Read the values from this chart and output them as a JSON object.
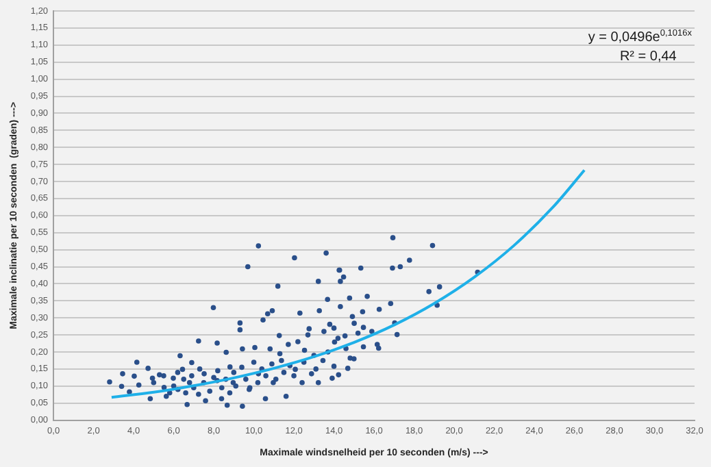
{
  "chart_data": {
    "type": "scatter",
    "xlabel": "Maximale windsnelheid per 10 seconden (m/s) --->",
    "ylabel": "Maximale inclinatie per 10 seconden  (graden) --->",
    "annotations": [
      "y = 0,0496e$^{0,1016x}$",
      "R² = 0,44"
    ],
    "xlim": [
      0,
      32
    ],
    "ylim": [
      0,
      1.2
    ],
    "xticks": [
      {
        "value": 0,
        "label": "0,0"
      },
      {
        "value": 2,
        "label": "2,0"
      },
      {
        "value": 4,
        "label": "4,0"
      },
      {
        "value": 6,
        "label": "6,0"
      },
      {
        "value": 8,
        "label": "8,0"
      },
      {
        "value": 10,
        "label": "10,0"
      },
      {
        "value": 12,
        "label": "12,0"
      },
      {
        "value": 14,
        "label": "14,0"
      },
      {
        "value": 16,
        "label": "16,0"
      },
      {
        "value": 18,
        "label": "18,0"
      },
      {
        "value": 20,
        "label": "20,0"
      },
      {
        "value": 22,
        "label": "22,0"
      },
      {
        "value": 24,
        "label": "24,0"
      },
      {
        "value": 26,
        "label": "26,0"
      },
      {
        "value": 28,
        "label": "28,0"
      },
      {
        "value": 30,
        "label": "30,0"
      },
      {
        "value": 32,
        "label": "32,0"
      }
    ],
    "yticks": [
      {
        "value": 0,
        "label": "0,00"
      },
      {
        "value": 0.05,
        "label": "0,05"
      },
      {
        "value": 0.1,
        "label": "0,10"
      },
      {
        "value": 0.15,
        "label": "0,15"
      },
      {
        "value": 0.2,
        "label": "0,20"
      },
      {
        "value": 0.25,
        "label": "0,25"
      },
      {
        "value": 0.3,
        "label": "0,30"
      },
      {
        "value": 0.35,
        "label": "0,35"
      },
      {
        "value": 0.4,
        "label": "0,40"
      },
      {
        "value": 0.45,
        "label": "0,45"
      },
      {
        "value": 0.5,
        "label": "0,50"
      },
      {
        "value": 0.55,
        "label": "0,55"
      },
      {
        "value": 0.6,
        "label": "0,60"
      },
      {
        "value": 0.65,
        "label": "0,65"
      },
      {
        "value": 0.7,
        "label": "0,70"
      },
      {
        "value": 0.75,
        "label": "0,75"
      },
      {
        "value": 0.8,
        "label": "0,80"
      },
      {
        "value": 0.85,
        "label": "0,85"
      },
      {
        "value": 0.9,
        "label": "0,90"
      },
      {
        "value": 0.95,
        "label": "0,95"
      },
      {
        "value": 1.0,
        "label": "1,00"
      },
      {
        "value": 1.05,
        "label": "1,05"
      },
      {
        "value": 1.1,
        "label": "1,10"
      },
      {
        "value": 1.15,
        "label": "1,15"
      },
      {
        "value": 1.2,
        "label": "1,20"
      }
    ],
    "grid": "y",
    "legend": false,
    "marker": "circle",
    "series": [
      {
        "color": "#2a4f8a",
        "x": [
          2.8,
          3.4,
          3.45,
          4.16,
          4.03,
          3.79,
          4.26,
          4.72,
          4.94,
          4.83,
          5.29,
          5.52,
          5.63,
          5.98,
          6.21,
          6.32,
          6.44,
          6.67,
          6.79,
          6.9,
          7.24,
          7.24,
          7.52,
          7.59,
          7.98,
          8.17,
          8.17,
          8.39,
          8.62,
          8.81,
          8.67,
          8.97,
          9.31,
          9.31,
          9.43,
          9.43,
          9.7,
          9.77,
          10.05,
          10.23,
          10.23,
          10.46,
          10.58,
          10.69,
          10.81,
          10.92,
          10.97,
          11.2,
          11.27,
          11.38,
          11.61,
          11.72,
          12.03,
          12.07,
          12.3,
          12.41,
          12.53,
          12.76,
          12.88,
          13.22,
          13.27,
          13.22,
          13.45,
          13.61,
          13.68,
          13.79,
          13.91,
          14.03,
          14.26,
          14.28,
          14.48,
          14.32,
          14.32,
          14.78,
          14.55,
          14.81,
          14.69,
          14.23,
          14.0,
          15.34,
          15.66,
          15.43,
          14.92,
          15.01,
          15.47,
          15.2,
          15.89,
          15.47,
          16.16,
          16.23,
          16.26,
          16.83,
          16.92,
          16.94,
          17.03,
          17.15,
          17.31,
          17.77,
          18.74,
          18.92,
          19.15,
          19.27,
          21.17,
          5.0,
          5.5,
          5.8,
          6.0,
          6.2,
          6.5,
          6.6,
          6.9,
          7.0,
          7.3,
          7.5,
          7.8,
          8.0,
          8.2,
          8.4,
          8.6,
          8.8,
          9.0,
          9.1,
          9.4,
          9.6,
          9.8,
          10.0,
          10.2,
          10.4,
          10.6,
          10.9,
          11.1,
          11.3,
          11.5,
          11.8,
          12.0,
          12.2,
          12.5,
          12.7,
          13.0,
          13.1,
          13.5,
          13.7,
          14.0,
          14.2,
          14.6,
          15.0
        ],
        "values": [
          0.112,
          0.099,
          0.136,
          0.17,
          0.129,
          0.083,
          0.103,
          0.152,
          0.123,
          0.063,
          0.133,
          0.096,
          0.07,
          0.123,
          0.09,
          0.189,
          0.149,
          0.046,
          0.11,
          0.169,
          0.232,
          0.076,
          0.136,
          0.057,
          0.33,
          0.226,
          0.116,
          0.063,
          0.199,
          0.156,
          0.044,
          0.11,
          0.285,
          0.265,
          0.041,
          0.209,
          0.45,
          0.09,
          0.213,
          0.511,
          0.136,
          0.294,
          0.063,
          0.312,
          0.209,
          0.321,
          0.11,
          0.393,
          0.248,
          0.175,
          0.07,
          0.222,
          0.476,
          0.149,
          0.314,
          0.11,
          0.205,
          0.268,
          0.136,
          0.407,
          0.321,
          0.11,
          0.175,
          0.49,
          0.354,
          0.281,
          0.123,
          0.229,
          0.44,
          0.44,
          0.42,
          0.407,
          0.333,
          0.358,
          0.247,
          0.182,
          0.152,
          0.133,
          0.158,
          0.446,
          0.363,
          0.318,
          0.304,
          0.284,
          0.272,
          0.255,
          0.26,
          0.215,
          0.222,
          0.211,
          0.325,
          0.342,
          0.446,
          0.535,
          0.285,
          0.251,
          0.45,
          0.469,
          0.377,
          0.512,
          0.337,
          0.391,
          0.434,
          0.11,
          0.13,
          0.08,
          0.1,
          0.14,
          0.12,
          0.08,
          0.13,
          0.095,
          0.15,
          0.11,
          0.085,
          0.125,
          0.145,
          0.095,
          0.12,
          0.08,
          0.14,
          0.1,
          0.155,
          0.12,
          0.095,
          0.17,
          0.11,
          0.15,
          0.13,
          0.165,
          0.12,
          0.195,
          0.14,
          0.16,
          0.13,
          0.23,
          0.17,
          0.25,
          0.19,
          0.15,
          0.26,
          0.2,
          0.27,
          0.24,
          0.21,
          0.18
        ]
      },
      {
        "type": "line",
        "color": "#1fb0e8",
        "marker": "none",
        "x": [
          2.9,
          5,
          7,
          9,
          11,
          13,
          15,
          17,
          19,
          21,
          23,
          25,
          26.5
        ],
        "values": [
          0.067,
          0.082,
          0.101,
          0.124,
          0.152,
          0.186,
          0.228,
          0.279,
          0.342,
          0.419,
          0.513,
          0.629,
          0.733
        ]
      }
    ]
  }
}
